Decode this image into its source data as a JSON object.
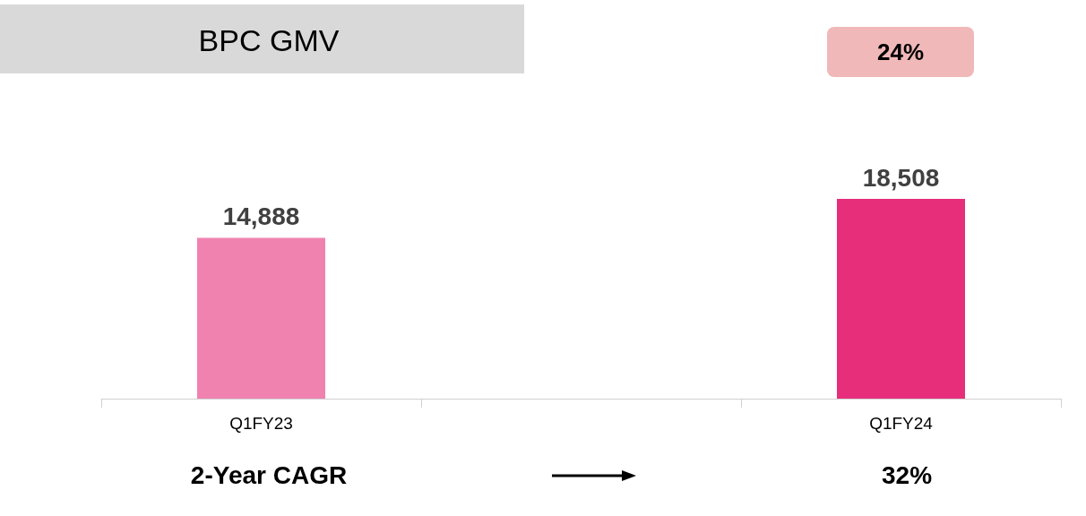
{
  "chart_data": {
    "type": "bar",
    "title": "BPC GMV",
    "categories": [
      "Q1FY23",
      null,
      "Q1FY24"
    ],
    "values": [
      14888,
      null,
      18508
    ],
    "colors": [
      "#f082b0",
      "#e62e7b",
      "#e62e7b"
    ],
    "value_labels": [
      "14,888",
      null,
      "18,508"
    ],
    "annotations": [
      "24%",
      "2-Year CAGR",
      "32%"
    ],
    "grid": false
  }
}
